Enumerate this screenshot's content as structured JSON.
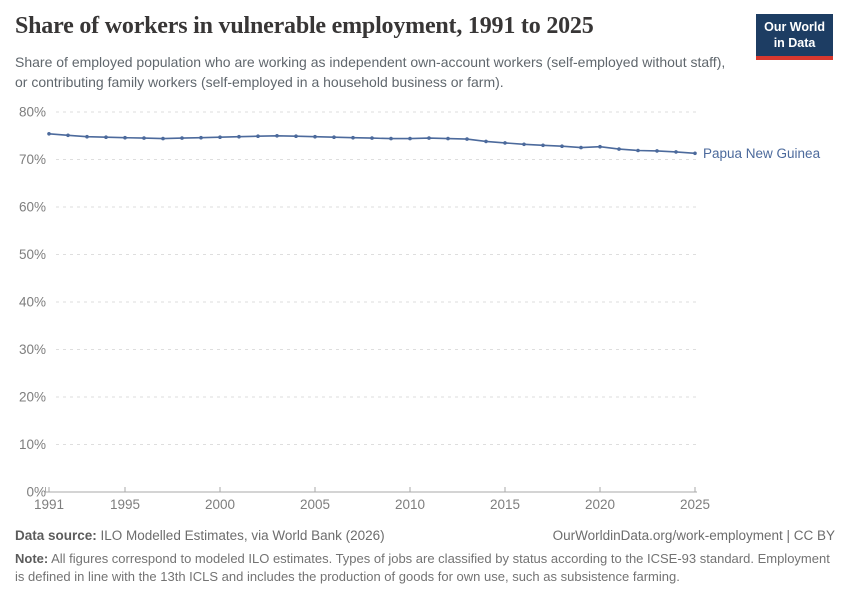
{
  "header": {
    "title": "Share of workers in vulnerable employment, 1991 to 2025",
    "subtitle": "Share of employed population who are working as independent own-account workers (self-employed without staff), or contributing family workers (self-employed in a household business or farm)."
  },
  "logo": {
    "line1": "Our World",
    "line2": "in Data"
  },
  "chart_data": {
    "type": "line",
    "title": "Share of workers in vulnerable employment, 1991 to 2025",
    "x": [
      1991,
      1992,
      1993,
      1994,
      1995,
      1996,
      1997,
      1998,
      1999,
      2000,
      2001,
      2002,
      2003,
      2004,
      2005,
      2006,
      2007,
      2008,
      2009,
      2010,
      2011,
      2012,
      2013,
      2014,
      2015,
      2016,
      2017,
      2018,
      2019,
      2020,
      2021,
      2022,
      2023,
      2024,
      2025
    ],
    "series": [
      {
        "name": "Papua New Guinea",
        "values": [
          75.4,
          75.1,
          74.8,
          74.7,
          74.6,
          74.5,
          74.4,
          74.5,
          74.6,
          74.7,
          74.8,
          74.9,
          75.0,
          74.9,
          74.8,
          74.7,
          74.6,
          74.5,
          74.4,
          74.4,
          74.5,
          74.4,
          74.3,
          73.8,
          73.5,
          73.2,
          73.0,
          72.8,
          72.5,
          72.7,
          72.2,
          71.9,
          71.8,
          71.6,
          71.3
        ]
      }
    ],
    "xticks": [
      1991,
      1995,
      2000,
      2005,
      2010,
      2015,
      2020,
      2025
    ],
    "yticks": [
      0,
      10,
      20,
      30,
      40,
      50,
      60,
      70,
      80
    ],
    "ylim": [
      0,
      80
    ],
    "y_unit": "%",
    "grid": "horizontal-dashed",
    "legend": "line-end-label",
    "color": "#4C6A9C",
    "colors": {
      "grid": "#dedede",
      "axis": "#a9a9a9",
      "tick_label": "#7e7e7e"
    }
  },
  "footer": {
    "datasource_label": "Data source:",
    "datasource_text": " ILO Modelled Estimates, via World Bank (2026)",
    "rights": "OurWorldinData.org/work-employment | CC BY",
    "note_label": "Note:",
    "note_text": " All figures correspond to modeled ILO estimates. Types of jobs are classified by status according to the ICSE-93 standard. Employment is defined in line with the 13th ICLS and includes the production of goods for own use, such as subsistence farming."
  },
  "colors": {
    "logo_navy": "#1d3d63",
    "logo_red": "#d8382e",
    "title": "#383636"
  }
}
